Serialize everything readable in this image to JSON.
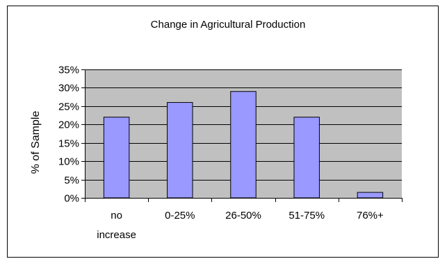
{
  "chart_data": {
    "type": "bar",
    "title": "Change in Agricultural Production",
    "xlabel": "",
    "ylabel": "% of Sample",
    "categories": [
      [
        "no",
        "increase"
      ],
      [
        "0-25%"
      ],
      [
        "26-50%"
      ],
      [
        "51-75%"
      ],
      [
        "76%+"
      ]
    ],
    "values": [
      0.22,
      0.26,
      0.29,
      0.22,
      0.015
    ],
    "ylim": [
      0,
      0.35
    ],
    "yticks": [
      "0%",
      "5%",
      "10%",
      "15%",
      "20%",
      "25%",
      "30%",
      "35%"
    ],
    "grid": true,
    "legend": "none",
    "colors": {
      "bar_fill": "#9999ff",
      "plot_background": "#c0c0c0",
      "border": "#000000"
    }
  }
}
